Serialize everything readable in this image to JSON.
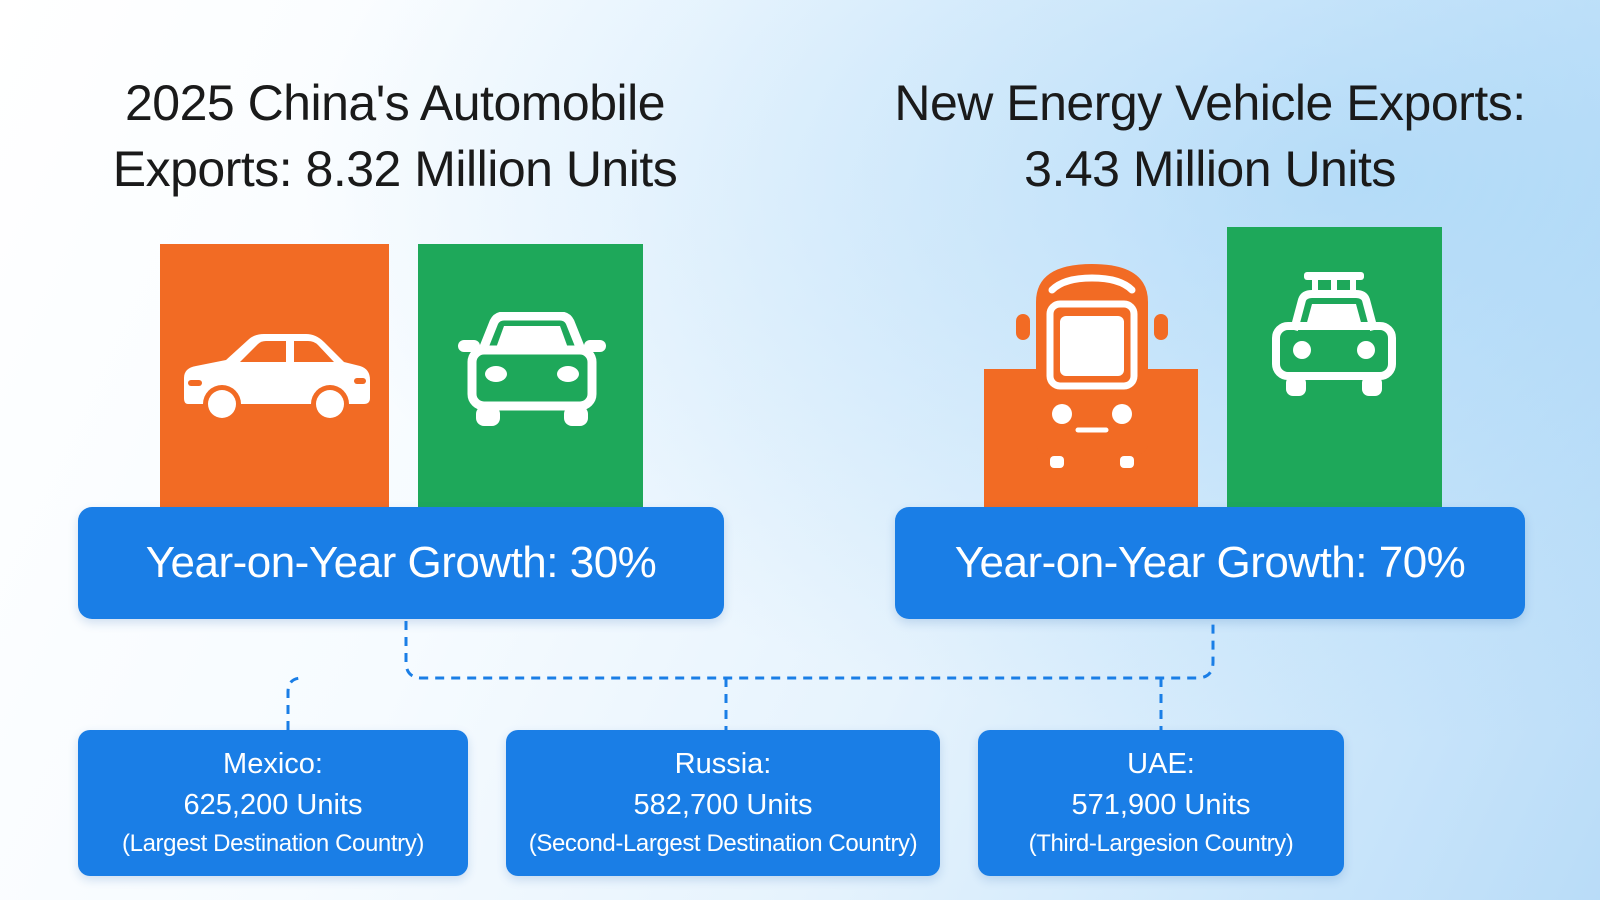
{
  "titles": {
    "left": "2025 China's Automobile\nExports: 8.32 Million Units",
    "right": "New Energy Vehicle Exports:\n3.43 Million Units"
  },
  "growth": {
    "left": "Year-on-Year Growth: 30%",
    "right": "Year-on-Year Growth: 70%"
  },
  "destinations": [
    {
      "country": "Mexico:",
      "units": "625,200 Units",
      "rank": "(Largest Destination Country)"
    },
    {
      "country": "Russia:",
      "units": "582,700 Units",
      "rank": "(Second-Largest Destination Country)"
    },
    {
      "country": "UAE:",
      "units": "571,900 Units",
      "rank": "(Third-Largesion Country)"
    }
  ],
  "colors": {
    "orange": "#f26b24",
    "green": "#1ea85a",
    "blue": "#1a7ee6",
    "connector": "#1a7ee6"
  },
  "icons": [
    "sedan-icon",
    "front-car-icon",
    "bus-icon",
    "taxi-icon"
  ]
}
